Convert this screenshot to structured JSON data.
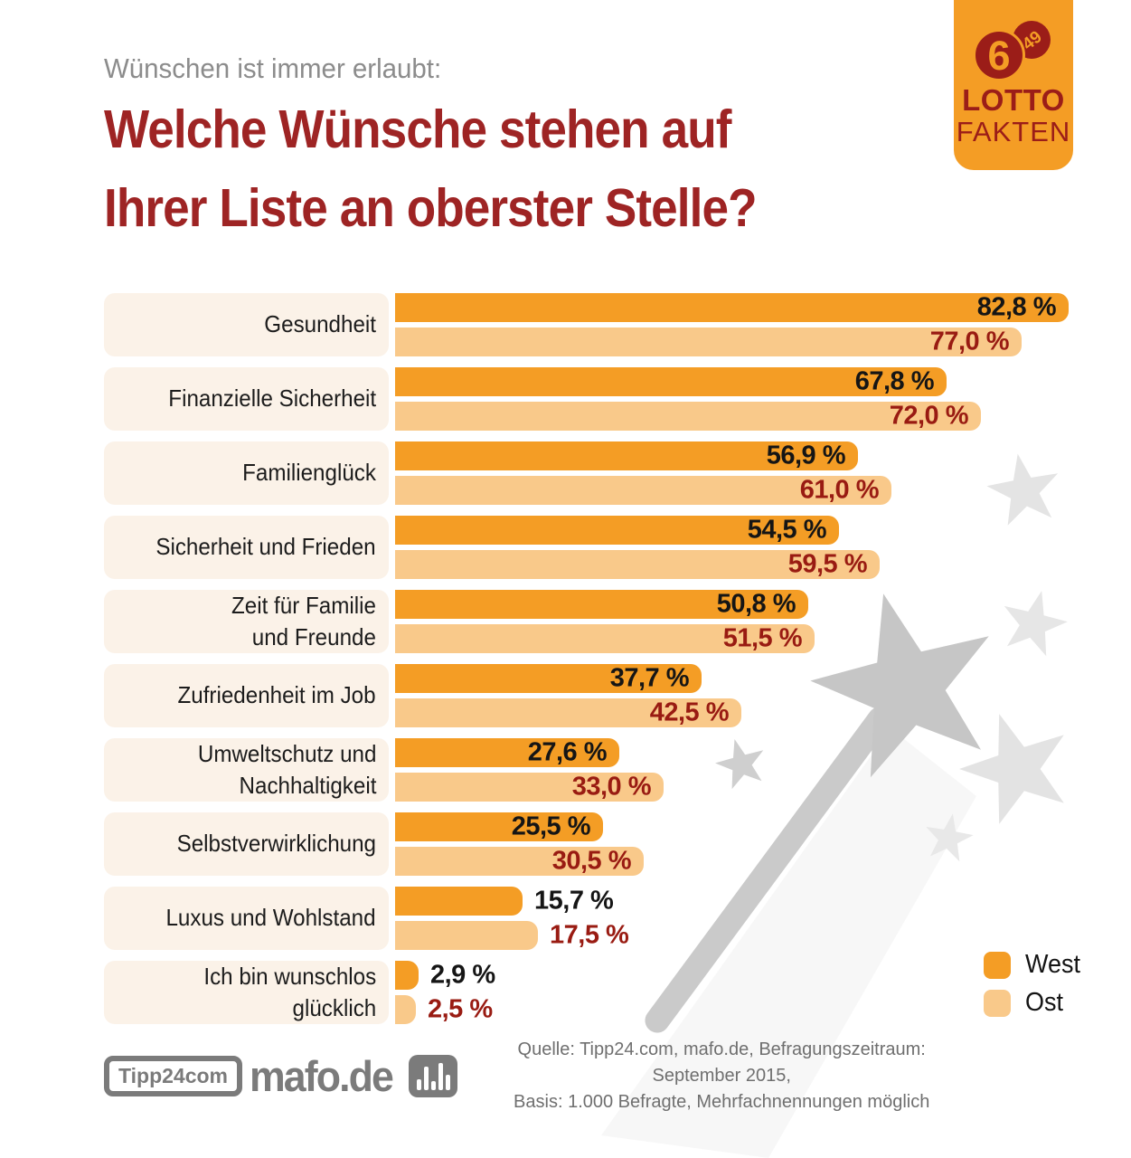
{
  "header": {
    "kicker": "Wünschen ist immer erlaubt:",
    "title_lines": [
      "Welche Wünsche stehen auf",
      "Ihrer Liste an oberster Stelle?"
    ]
  },
  "badge": {
    "ball_large": "6",
    "ball_small": "49",
    "line1": "LOTTO",
    "line2": "FAKTEN",
    "bg_color": "#f49d25",
    "text_color": "#9b1d18"
  },
  "chart_data": {
    "type": "bar",
    "orientation": "horizontal",
    "title": "Welche Wünsche stehen auf Ihrer Liste an oberster Stelle?",
    "unit": "%",
    "xlim": [
      0,
      100
    ],
    "grid": false,
    "legend_position": "bottom-right",
    "categories": [
      "Gesundheit",
      "Finanzielle Sicherheit",
      "Familienglück",
      "Sicherheit und Frieden",
      "Zeit für Familie\nund Freunde",
      "Zufriedenheit im Job",
      "Umweltschutz und\nNachhaltigkeit",
      "Selbstverwirklichung",
      "Luxus und Wohlstand",
      "Ich bin wunschlos\nglücklich"
    ],
    "series": [
      {
        "name": "West",
        "color": "#f49d25",
        "label_color": "#151515",
        "values": [
          82.8,
          67.8,
          56.9,
          54.5,
          50.8,
          37.7,
          27.6,
          25.5,
          15.7,
          2.9
        ],
        "labels": [
          "82,8 %",
          "67,8 %",
          "56,9 %",
          "54,5 %",
          "50,8 %",
          "37,7 %",
          "27,6 %",
          "25,5 %",
          "15,7 %",
          "2,9 %"
        ]
      },
      {
        "name": "Ost",
        "color": "#f9c98a",
        "label_color": "#991b12",
        "values": [
          77.0,
          72.0,
          61.0,
          59.5,
          51.5,
          42.5,
          33.0,
          30.5,
          17.5,
          2.5
        ],
        "labels": [
          "77,0 %",
          "72,0 %",
          "61,0 %",
          "59,5 %",
          "51,5 %",
          "42,5 %",
          "33,0 %",
          "30,5 %",
          "17,5 %",
          "2,5 %"
        ]
      }
    ]
  },
  "legend": {
    "items": [
      {
        "label": "West",
        "color": "#f49d25"
      },
      {
        "label": "Ost",
        "color": "#f9c98a"
      }
    ]
  },
  "footer": {
    "logo_tipp24": "Tipp24com",
    "logo_mafo": "mafo.de",
    "source_line1": "Quelle: Tipp24.com, mafo.de, Befragungszeitraum: September 2015,",
    "source_line2": "Basis: 1.000 Befragte, Mehrfachnennungen möglich"
  },
  "colors": {
    "title_red": "#9e2424",
    "value_red": "#991b12",
    "row_bg_cream": "#fbf2e8",
    "decor_gray": "#c6c6c6",
    "footer_gray": "#7b7b7b"
  }
}
